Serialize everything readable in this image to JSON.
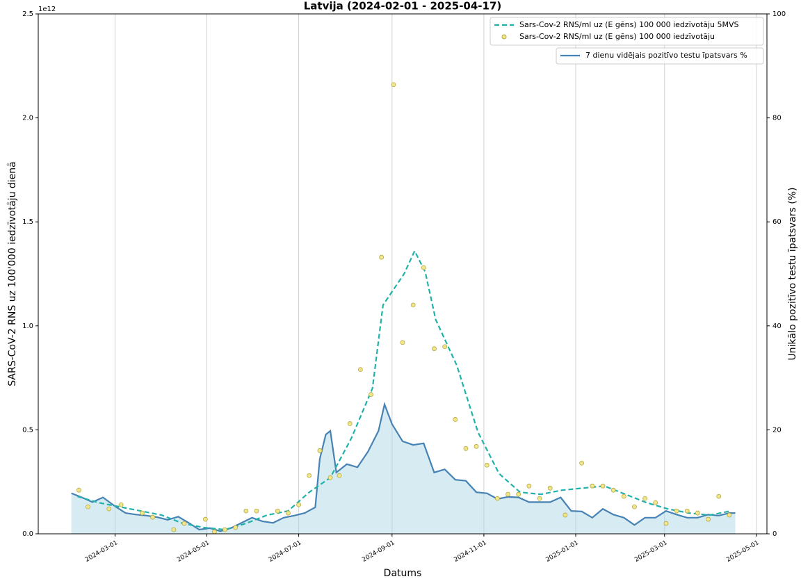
{
  "chart_data": {
    "type": "line",
    "title": "Latvija (2024-02-01 - 2025-04-17)",
    "xlabel": "Datums",
    "ylabel": "SARS-CoV-2 RNS uz 100'000 iedzīvotāju dienā",
    "y2label": "Unikālo pozitīvo testu īpatsvars (%)",
    "y_offset_label": "1e12",
    "xlim": [
      "2024-01-10",
      "2025-05-08"
    ],
    "xticks": [
      "2024-03-01",
      "2024-05-01",
      "2024-07-01",
      "2024-09-01",
      "2024-11-01",
      "2025-01-01",
      "2025-03-01",
      "2025-05-01"
    ],
    "ylim": [
      0,
      2.5
    ],
    "yticks": [
      {
        "value": 0,
        "label": "0.0"
      },
      0.5,
      {
        "value": 1,
        "label": "1.0"
      },
      1.5,
      {
        "value": 2,
        "label": "2.0"
      },
      2.5
    ],
    "y2lim": [
      0,
      100
    ],
    "y2ticks": [
      0,
      20,
      40,
      60,
      80,
      100
    ],
    "grid": "x",
    "legend": "upper right",
    "series": [
      {
        "name": "Sars-Cov-2 RNS/ml uz (E gēns) 100 000 iedzīvotāju 5MVS",
        "type": "dashed",
        "color": "#20b2aa",
        "x": [
          "2024-02-05",
          "2024-02-19",
          "2024-03-04",
          "2024-03-18",
          "2024-04-01",
          "2024-04-15",
          "2024-04-29",
          "2024-05-13",
          "2024-05-27",
          "2024-06-10",
          "2024-06-24",
          "2024-07-08",
          "2024-07-22",
          "2024-08-05",
          "2024-08-19",
          "2024-08-26",
          "2024-09-09",
          "2024-09-16",
          "2024-09-23",
          "2024-09-30",
          "2024-10-14",
          "2024-10-28",
          "2024-11-11",
          "2024-11-25",
          "2024-12-09",
          "2024-12-23",
          "2025-01-06",
          "2025-01-20",
          "2025-02-03",
          "2025-02-17",
          "2025-03-03",
          "2025-03-17",
          "2025-03-31",
          "2025-04-14"
        ],
        "values": [
          0.18,
          0.15,
          0.13,
          0.11,
          0.09,
          0.05,
          0.03,
          0.02,
          0.05,
          0.09,
          0.11,
          0.2,
          0.27,
          0.46,
          0.7,
          1.1,
          1.25,
          1.36,
          1.26,
          1.03,
          0.81,
          0.49,
          0.29,
          0.2,
          0.19,
          0.21,
          0.22,
          0.23,
          0.19,
          0.15,
          0.12,
          0.1,
          0.09,
          0.11
        ]
      },
      {
        "name": "Sars-Cov-2 RNS/ml uz (E gēns) 100 000 iedzīvotāju",
        "type": "scatter",
        "color": "#f0e68c",
        "x": [
          "2024-02-06",
          "2024-02-12",
          "2024-02-26",
          "2024-03-05",
          "2024-03-19",
          "2024-03-26",
          "2024-04-09",
          "2024-04-16",
          "2024-04-30",
          "2024-05-06",
          "2024-05-13",
          "2024-05-20",
          "2024-05-27",
          "2024-06-03",
          "2024-06-17",
          "2024-06-24",
          "2024-07-01",
          "2024-07-08",
          "2024-07-15",
          "2024-07-22",
          "2024-07-28",
          "2024-08-04",
          "2024-08-11",
          "2024-08-18",
          "2024-08-25",
          "2024-09-02",
          "2024-09-08",
          "2024-09-15",
          "2024-09-22",
          "2024-09-29",
          "2024-10-06",
          "2024-10-13",
          "2024-10-20",
          "2024-10-27",
          "2024-11-03",
          "2024-11-10",
          "2024-11-17",
          "2024-11-24",
          "2024-12-01",
          "2024-12-08",
          "2024-12-15",
          "2024-12-25",
          "2025-01-05",
          "2025-01-12",
          "2025-01-19",
          "2025-01-26",
          "2025-02-02",
          "2025-02-09",
          "2025-02-16",
          "2025-02-23",
          "2025-03-02",
          "2025-03-09",
          "2025-03-16",
          "2025-03-23",
          "2025-03-30",
          "2025-04-06",
          "2025-04-13"
        ],
        "values": [
          0.21,
          0.13,
          0.12,
          0.14,
          0.1,
          0.08,
          0.02,
          0.05,
          0.07,
          0.01,
          0.02,
          0.03,
          0.11,
          0.11,
          0.11,
          0.1,
          0.14,
          0.28,
          0.4,
          0.27,
          0.28,
          0.53,
          0.79,
          0.67,
          1.33,
          2.16,
          0.92,
          1.1,
          1.28,
          0.89,
          0.9,
          0.55,
          0.41,
          0.42,
          0.33,
          0.17,
          0.19,
          0.19,
          0.23,
          0.17,
          0.22,
          0.09,
          0.34,
          0.23,
          0.23,
          0.21,
          0.18,
          0.13,
          0.17,
          0.15,
          0.05,
          0.11,
          0.11,
          0.1,
          0.07,
          0.18,
          0.09
        ]
      },
      {
        "name": "7 dienu vidējais pozitīvo testu īpatsvars %",
        "type": "area",
        "axis": "y2",
        "color": "#4682b4",
        "fill": "#add8e6",
        "x": [
          "2024-02-01",
          "2024-02-08",
          "2024-02-15",
          "2024-02-22",
          "2024-03-01",
          "2024-03-08",
          "2024-03-15",
          "2024-03-22",
          "2024-03-29",
          "2024-04-05",
          "2024-04-12",
          "2024-04-19",
          "2024-04-26",
          "2024-05-03",
          "2024-05-10",
          "2024-05-17",
          "2024-05-24",
          "2024-05-31",
          "2024-06-07",
          "2024-06-14",
          "2024-06-21",
          "2024-06-28",
          "2024-07-05",
          "2024-07-12",
          "2024-07-15",
          "2024-07-19",
          "2024-07-22",
          "2024-07-26",
          "2024-08-02",
          "2024-08-09",
          "2024-08-16",
          "2024-08-23",
          "2024-08-27",
          "2024-09-01",
          "2024-09-08",
          "2024-09-15",
          "2024-09-22",
          "2024-09-29",
          "2024-10-06",
          "2024-10-13",
          "2024-10-20",
          "2024-10-27",
          "2024-11-03",
          "2024-11-10",
          "2024-11-17",
          "2024-11-24",
          "2024-12-01",
          "2024-12-08",
          "2024-12-15",
          "2024-12-22",
          "2024-12-29",
          "2025-01-05",
          "2025-01-12",
          "2025-01-19",
          "2025-01-26",
          "2025-02-02",
          "2025-02-09",
          "2025-02-16",
          "2025-02-23",
          "2025-03-02",
          "2025-03-09",
          "2025-03-16",
          "2025-03-23",
          "2025-03-30",
          "2025-04-06",
          "2025-04-13",
          "2025-04-17"
        ],
        "values": [
          7.8,
          7.0,
          6.1,
          7.0,
          5.3,
          4.0,
          3.7,
          3.5,
          3.2,
          2.7,
          3.3,
          2.1,
          0.8,
          1.1,
          0.5,
          1.1,
          2.1,
          3.1,
          2.4,
          2.1,
          3.1,
          3.5,
          4.0,
          5.1,
          14.4,
          19.1,
          19.8,
          11.8,
          13.4,
          12.8,
          15.8,
          19.8,
          24.9,
          21.1,
          17.8,
          17.1,
          17.4,
          11.8,
          12.4,
          10.4,
          10.2,
          8.0,
          7.8,
          6.7,
          7.1,
          7.0,
          6.1,
          6.1,
          6.1,
          7.0,
          4.4,
          4.3,
          3.1,
          4.8,
          3.7,
          3.1,
          1.7,
          3.1,
          3.1,
          4.4,
          3.7,
          3.1,
          3.1,
          3.7,
          3.5,
          4.0,
          4.0
        ]
      }
    ]
  }
}
